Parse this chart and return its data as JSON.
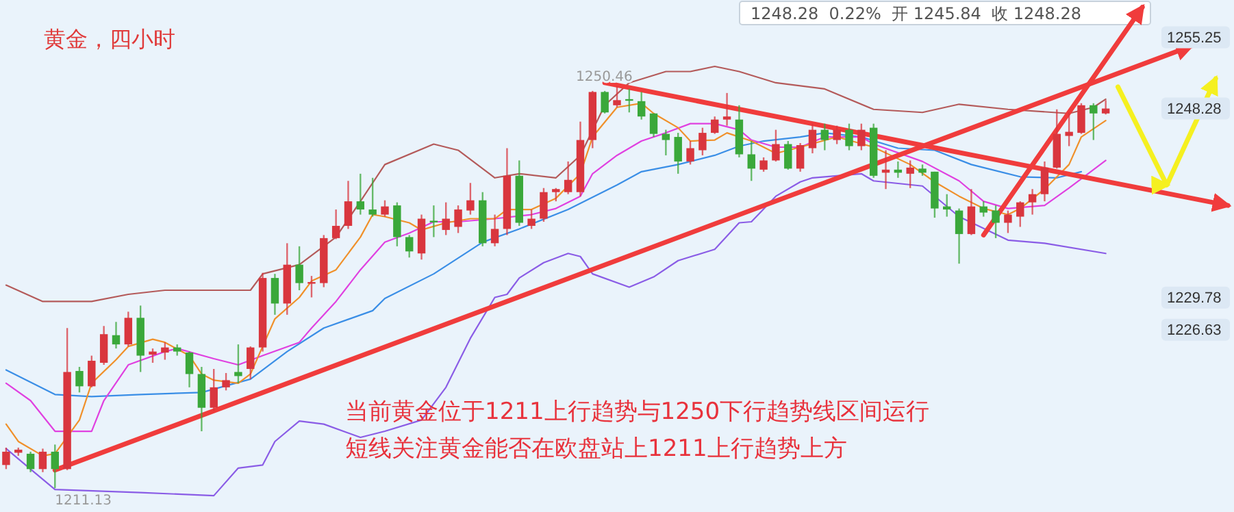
{
  "chart_data": {
    "type": "candlestick",
    "title": "黄金，四小时",
    "categories": [
      null,
      null,
      null,
      null,
      null,
      null,
      null,
      null,
      null,
      null,
      null,
      null,
      null,
      null,
      null,
      null,
      null,
      null,
      null,
      null,
      null,
      null,
      null,
      null,
      null,
      null,
      null,
      null,
      null,
      null,
      null,
      null,
      null,
      null,
      null,
      null,
      null,
      null,
      null,
      null,
      null,
      null,
      null,
      null,
      null,
      null,
      null,
      null,
      null,
      null,
      null,
      null,
      null,
      null,
      null,
      null,
      null,
      null,
      null,
      null,
      null,
      null,
      null,
      null,
      null,
      null,
      null,
      null,
      null,
      null,
      null,
      null,
      null,
      null,
      null,
      null,
      null,
      null,
      null,
      null,
      null,
      null,
      null,
      null,
      null,
      null,
      null,
      null,
      null,
      null,
      null,
      null,
      null,
      null,
      null,
      null,
      null,
      null,
      null,
      null,
      null
    ],
    "ohlc": [
      [
        1213.4,
        1215.1,
        1213.0,
        1214.7
      ],
      [
        1214.6,
        1215.1,
        1214.3,
        1214.9
      ],
      [
        1214.5,
        1214.7,
        1212.7,
        1213.0
      ],
      [
        1213.0,
        1215.0,
        1212.7,
        1214.7
      ],
      [
        1214.7,
        1215.4,
        1211.13,
        1213.0
      ],
      [
        1213.0,
        1226.8,
        1212.9,
        1222.5
      ],
      [
        1222.6,
        1223.0,
        1220.5,
        1221.1
      ],
      [
        1221.1,
        1224.1,
        1221.0,
        1223.6
      ],
      [
        1223.4,
        1227.0,
        1223.2,
        1226.2
      ],
      [
        1226.1,
        1227.4,
        1224.8,
        1225.2
      ],
      [
        1225.2,
        1228.4,
        1225.0,
        1227.8
      ],
      [
        1227.8,
        1229.0,
        1222.5,
        1224.1
      ],
      [
        1224.2,
        1224.8,
        1223.4,
        1224.5
      ],
      [
        1224.4,
        1225.4,
        1223.7,
        1224.9
      ],
      [
        1224.9,
        1225.2,
        1224.1,
        1224.5
      ],
      [
        1224.4,
        1224.5,
        1221.0,
        1222.3
      ],
      [
        1222.3,
        1223.0,
        1216.7,
        1219.0
      ],
      [
        1219.0,
        1222.8,
        1218.7,
        1221.0
      ],
      [
        1221.0,
        1222.4,
        1220.7,
        1221.7
      ],
      [
        1222.5,
        1225.2,
        1221.4,
        1222.1
      ],
      [
        1222.8,
        1225.0,
        1221.8,
        1224.9
      ],
      [
        1224.9,
        1232.2,
        1224.5,
        1231.7
      ],
      [
        1231.7,
        1232.1,
        1228.1,
        1229.2
      ],
      [
        1229.2,
        1235.1,
        1228.1,
        1233.0
      ],
      [
        1233.0,
        1234.8,
        1230.5,
        1231.2
      ],
      [
        1231.2,
        1231.9,
        1229.8,
        1231.3
      ],
      [
        1231.2,
        1235.9,
        1230.8,
        1235.6
      ],
      [
        1235.6,
        1238.4,
        1235.5,
        1236.8
      ],
      [
        1236.8,
        1241.2,
        1236.5,
        1239.2
      ],
      [
        1239.2,
        1241.9,
        1237.9,
        1238.4
      ],
      [
        1238.4,
        1241.5,
        1237.7,
        1237.9
      ],
      [
        1237.9,
        1239.3,
        1237.7,
        1238.7
      ],
      [
        1238.8,
        1239.1,
        1234.8,
        1235.7
      ],
      [
        1235.7,
        1235.9,
        1233.7,
        1234.3
      ],
      [
        1234.1,
        1237.9,
        1233.5,
        1237.5
      ],
      [
        1237.3,
        1238.8,
        1235.7,
        1237.2
      ],
      [
        1236.4,
        1239.1,
        1235.9,
        1237.5
      ],
      [
        1236.7,
        1238.8,
        1236.1,
        1238.4
      ],
      [
        1238.3,
        1241.0,
        1237.9,
        1239.3
      ],
      [
        1239.3,
        1240.1,
        1234.8,
        1235.1
      ],
      [
        1235.1,
        1237.9,
        1234.8,
        1236.5
      ],
      [
        1236.5,
        1244.4,
        1235.9,
        1241.7
      ],
      [
        1241.7,
        1243.2,
        1236.8,
        1237.1
      ],
      [
        1236.8,
        1238.4,
        1236.5,
        1237.5
      ],
      [
        1237.5,
        1240.5,
        1237.2,
        1240.1
      ],
      [
        1240.1,
        1240.5,
        1239.2,
        1240.4
      ],
      [
        1240.1,
        1243.1,
        1239.9,
        1241.3
      ],
      [
        1240.1,
        1247.0,
        1239.7,
        1245.2
      ],
      [
        1245.2,
        1250.0,
        1244.4,
        1249.9
      ],
      [
        1249.9,
        1250.0,
        1247.8,
        1247.9
      ],
      [
        1248.6,
        1250.46,
        1248.4,
        1249.1
      ],
      [
        1249.2,
        1250.2,
        1247.9,
        1249.1
      ],
      [
        1249.0,
        1249.9,
        1247.2,
        1247.5
      ],
      [
        1247.8,
        1247.8,
        1245.5,
        1245.8
      ],
      [
        1245.8,
        1246.2,
        1243.7,
        1245.2
      ],
      [
        1245.5,
        1245.9,
        1241.9,
        1243.1
      ],
      [
        1243.1,
        1245.1,
        1242.8,
        1244.4
      ],
      [
        1244.2,
        1246.4,
        1243.7,
        1245.9
      ],
      [
        1245.9,
        1247.5,
        1245.8,
        1247.2
      ],
      [
        1247.2,
        1249.8,
        1246.6,
        1247.5
      ],
      [
        1247.2,
        1248.6,
        1243.5,
        1243.8
      ],
      [
        1243.8,
        1245.1,
        1241.2,
        1242.4
      ],
      [
        1242.3,
        1243.5,
        1242.1,
        1243.2
      ],
      [
        1243.2,
        1246.2,
        1243.1,
        1244.8
      ],
      [
        1244.8,
        1245.1,
        1242.3,
        1242.4
      ],
      [
        1242.4,
        1244.9,
        1242.1,
        1244.7
      ],
      [
        1244.4,
        1246.8,
        1243.9,
        1246.2
      ],
      [
        1246.2,
        1246.8,
        1244.2,
        1245.2
      ],
      [
        1245.2,
        1246.6,
        1244.8,
        1246.2
      ],
      [
        1246.2,
        1246.8,
        1244.2,
        1244.6
      ],
      [
        1244.6,
        1246.8,
        1244.2,
        1246.2
      ],
      [
        1246.4,
        1246.8,
        1241.5,
        1241.7
      ],
      [
        1242.0,
        1244.2,
        1240.4,
        1242.3
      ],
      [
        1242.3,
        1243.1,
        1241.5,
        1242.0
      ],
      [
        1241.9,
        1243.2,
        1240.5,
        1242.5
      ],
      [
        1242.4,
        1242.8,
        1241.7,
        1242.0
      ],
      [
        1242.1,
        1242.1,
        1237.6,
        1238.5
      ],
      [
        1238.7,
        1239.9,
        1237.7,
        1238.4
      ],
      [
        1238.3,
        1238.5,
        1233.1,
        1236.0
      ],
      [
        1236.0,
        1240.4,
        1235.9,
        1238.7
      ],
      [
        1238.7,
        1239.2,
        1237.7,
        1238.1
      ],
      [
        1238.3,
        1238.8,
        1235.6,
        1237.1
      ],
      [
        1237.1,
        1238.3,
        1236.1,
        1237.9
      ],
      [
        1237.7,
        1239.2,
        1236.7,
        1239.1
      ],
      [
        1239.1,
        1240.4,
        1237.9,
        1239.9
      ],
      [
        1239.9,
        1243.1,
        1239.2,
        1242.5
      ],
      [
        1242.5,
        1248.2,
        1242.4,
        1245.8
      ],
      [
        1245.6,
        1247.9,
        1244.6,
        1246.0
      ],
      [
        1245.9,
        1248.8,
        1245.8,
        1248.6
      ],
      [
        1248.6,
        1248.8,
        1245.2,
        1247.8
      ],
      [
        1247.8,
        1249.1,
        1247.7,
        1248.28
      ],
      null,
      null,
      null,
      null,
      null,
      null,
      null,
      null,
      null,
      null
    ],
    "series": [
      {
        "type": "line",
        "color": "#b45a5a",
        "values": [
          1231.0,
          null,
          null,
          1229.4,
          null,
          null,
          null,
          1229.4,
          null,
          null,
          1230.1,
          null,
          null,
          1230.5,
          null,
          null,
          null,
          null,
          null,
          null,
          1230.5,
          1232.1,
          null,
          null,
          1233.0,
          null,
          null,
          1235.7,
          null,
          1239.2,
          null,
          1242.8,
          null,
          null,
          null,
          1244.8,
          null,
          1244.2,
          null,
          null,
          1241.5,
          null,
          1241.9,
          null,
          null,
          1241.5,
          null,
          1243.7,
          null,
          1248.6,
          null,
          1250.8,
          null,
          null,
          1251.9,
          null,
          1251.9,
          null,
          1252.4,
          null,
          1251.9,
          null,
          null,
          1250.8,
          null,
          null,
          null,
          1250.2,
          null,
          null,
          null,
          1248.2,
          null,
          null,
          null,
          1247.9,
          null,
          null,
          1248.7,
          null,
          null,
          null,
          1248.2,
          null,
          null,
          null,
          null,
          1247.8,
          null,
          1248.4,
          1249.2,
          null,
          null,
          null,
          null,
          null,
          null,
          null,
          null,
          null,
          null
        ]
      },
      {
        "type": "line",
        "color": "#8a5ce6",
        "values": [
          1215.0,
          null,
          1213.0,
          null,
          1211.0,
          null,
          null,
          null,
          null,
          null,
          null,
          1210.7,
          null,
          null,
          null,
          null,
          null,
          1210.4,
          null,
          1213.1,
          null,
          1213.4,
          1215.7,
          null,
          1217.7,
          null,
          1217.4,
          null,
          null,
          1216.1,
          null,
          1216.7,
          null,
          null,
          1217.8,
          null,
          1221.0,
          null,
          1225.8,
          null,
          1229.8,
          1230.1,
          1231.7,
          null,
          1233.2,
          null,
          1234.1,
          1233.8,
          1232.1,
          null,
          null,
          1230.8,
          null,
          1231.8,
          null,
          1233.4,
          null,
          null,
          1234.5,
          null,
          1237.1,
          1237.2,
          null,
          1239.7,
          null,
          1241.1,
          1241.5,
          null,
          null,
          null,
          1241.9,
          1241.2,
          null,
          null,
          null,
          1240.7,
          null,
          null,
          1237.7,
          null,
          null,
          null,
          1235.4,
          null,
          null,
          1235.1,
          null,
          null,
          null,
          null,
          1234.1,
          null,
          null,
          null,
          null,
          null,
          null,
          null,
          null,
          null,
          null
        ]
      },
      {
        "type": "line",
        "color": "#3a8ee6",
        "values": [
          1222.7,
          null,
          null,
          null,
          1220.3,
          null,
          null,
          1220.1,
          null,
          null,
          null,
          1220.3,
          null,
          null,
          null,
          null,
          1220.5,
          null,
          null,
          null,
          1221.8,
          null,
          null,
          1224.5,
          null,
          null,
          1226.8,
          null,
          null,
          null,
          1228.5,
          1229.7,
          null,
          null,
          null,
          1232.1,
          null,
          null,
          null,
          1235.2,
          null,
          null,
          1236.5,
          null,
          null,
          null,
          1238.4,
          null,
          null,
          null,
          1240.8,
          null,
          1242.1,
          null,
          null,
          1242.8,
          null,
          null,
          1243.7,
          null,
          1244.6,
          null,
          1245.1,
          null,
          null,
          1245.5,
          null,
          1245.9,
          null,
          null,
          1245.5,
          null,
          null,
          1244.4,
          null,
          null,
          1244.2,
          null,
          null,
          1242.8,
          null,
          null,
          null,
          1241.6,
          null,
          null,
          1241.5,
          null,
          1242.1,
          null,
          null,
          null,
          null,
          null,
          null,
          null,
          null,
          null,
          null,
          null,
          null
        ]
      },
      {
        "type": "line",
        "color": "#e040e0",
        "values": [
          1221.4,
          null,
          1219.7,
          null,
          1216.7,
          null,
          null,
          1216.7,
          1219.7,
          null,
          1223.2,
          null,
          null,
          1224.5,
          1224.8,
          null,
          null,
          1223.8,
          null,
          1223.2,
          null,
          1224.1,
          null,
          null,
          1225.4,
          1226.8,
          null,
          1229.4,
          null,
          1232.5,
          null,
          1235.2,
          null,
          1236.1,
          null,
          1237.2,
          null,
          1237.2,
          null,
          null,
          1237.5,
          null,
          null,
          1237.9,
          null,
          1238.5,
          null,
          1239.7,
          1241.9,
          null,
          1243.7,
          null,
          1245.1,
          null,
          1245.9,
          null,
          1246.8,
          null,
          1246.8,
          null,
          1246.2,
          1245.2,
          null,
          1244.5,
          null,
          1244.5,
          null,
          1245.5,
          null,
          null,
          1245.5,
          1244.8,
          null,
          null,
          null,
          1243.1,
          null,
          null,
          1241.2,
          null,
          1239.2,
          null,
          1238.5,
          null,
          null,
          1238.8,
          null,
          1240.5,
          null,
          null,
          1243.2,
          null,
          null,
          null,
          null,
          null,
          null,
          null,
          null,
          null,
          null
        ]
      },
      {
        "type": "line",
        "color": "#f0902a",
        "values": [
          1217.4,
          1215.7,
          null,
          1214.3,
          1214.5,
          null,
          1217.8,
          1221.4,
          null,
          1223.7,
          1225.0,
          null,
          1225.7,
          1225.4,
          null,
          1224.1,
          1222.3,
          1221.7,
          null,
          1221.4,
          1222.3,
          1225.0,
          1227.7,
          null,
          1229.8,
          1231.4,
          null,
          1232.5,
          null,
          1235.7,
          1237.9,
          1237.7,
          null,
          1237.1,
          1236.4,
          null,
          1237.1,
          null,
          1237.5,
          null,
          1237.5,
          1238.4,
          null,
          1238.4,
          null,
          1239.5,
          null,
          1241.9,
          1245.5,
          null,
          1248.4,
          null,
          1248.8,
          1247.8,
          null,
          1246.4,
          1245.1,
          null,
          1245.2,
          1245.9,
          null,
          1245.1,
          null,
          1243.9,
          null,
          1244.5,
          null,
          null,
          1245.5,
          null,
          null,
          1244.5,
          null,
          null,
          1242.8,
          null,
          1241.1,
          null,
          1239.7,
          null,
          1238.5,
          null,
          1237.9,
          1238.5,
          null,
          1240.4,
          null,
          1242.8,
          1245.5,
          null,
          1247.1,
          null,
          null,
          null,
          null,
          null,
          null,
          null,
          null,
          null,
          null
        ]
      },
      {
        "type": "line",
        "color": "#f03c3c",
        "values": [
          null,
          null,
          null,
          null,
          1212.9,
          null,
          null,
          null,
          null,
          null,
          null,
          null,
          null,
          null,
          null,
          null,
          null,
          null,
          null,
          null,
          null,
          null,
          null,
          null,
          null,
          null,
          null,
          null,
          null,
          null,
          null,
          null,
          null,
          null,
          null,
          null,
          null,
          null,
          null,
          null,
          null,
          null,
          null,
          null,
          null,
          null,
          null,
          null,
          null,
          null,
          null,
          null,
          null,
          null,
          null,
          null,
          null,
          null,
          null,
          null,
          null,
          null,
          null,
          null,
          null,
          null,
          null,
          null,
          null,
          null,
          null,
          null,
          null,
          null,
          null,
          null,
          null,
          null,
          null,
          null,
          null,
          null,
          null,
          null,
          null,
          null,
          null,
          null,
          null,
          null,
          null,
          null,
          null,
          null,
          null,
          null,
          null,
          1254.4,
          null,
          null,
          null
        ]
      },
      {
        "type": "line",
        "color": "#f03c3c",
        "values": [
          null,
          null,
          null,
          null,
          null,
          null,
          null,
          null,
          null,
          null,
          null,
          null,
          null,
          null,
          null,
          null,
          null,
          null,
          null,
          null,
          null,
          null,
          null,
          null,
          null,
          null,
          null,
          null,
          null,
          null,
          null,
          null,
          null,
          null,
          null,
          null,
          null,
          null,
          null,
          null,
          null,
          null,
          null,
          null,
          null,
          null,
          null,
          null,
          null,
          1250.8,
          null,
          null,
          null,
          null,
          null,
          null,
          null,
          null,
          null,
          null,
          null,
          null,
          null,
          null,
          null,
          null,
          null,
          null,
          null,
          null,
          null,
          null,
          null,
          null,
          null,
          null,
          null,
          null,
          null,
          null,
          null,
          null,
          null,
          null,
          null,
          null,
          null,
          null,
          null,
          null,
          null,
          null,
          null,
          null,
          null,
          null,
          null,
          null,
          null,
          null,
          1238.8
        ]
      },
      {
        "type": "line",
        "color": "#f03c3c",
        "values": [
          null,
          null,
          null,
          null,
          null,
          null,
          null,
          null,
          null,
          null,
          null,
          null,
          null,
          null,
          null,
          null,
          null,
          null,
          null,
          null,
          null,
          null,
          null,
          null,
          null,
          null,
          null,
          null,
          null,
          null,
          null,
          null,
          null,
          null,
          null,
          null,
          null,
          null,
          null,
          null,
          null,
          null,
          null,
          null,
          null,
          null,
          null,
          null,
          null,
          null,
          null,
          null,
          null,
          null,
          null,
          null,
          null,
          null,
          null,
          null,
          null,
          null,
          null,
          null,
          null,
          null,
          null,
          null,
          null,
          null,
          null,
          null,
          null,
          null,
          null,
          null,
          null,
          null,
          null,
          null,
          1235.9,
          null,
          null,
          null,
          null,
          null,
          null,
          null,
          null,
          null,
          null,
          null,
          null,
          1258.2,
          null,
          null,
          null,
          null,
          null,
          null,
          null
        ]
      },
      {
        "type": "line",
        "color": "#f5f020",
        "values": [
          null,
          null,
          null,
          null,
          null,
          null,
          null,
          null,
          null,
          null,
          null,
          null,
          null,
          null,
          null,
          null,
          null,
          null,
          null,
          null,
          null,
          null,
          null,
          null,
          null,
          null,
          null,
          null,
          null,
          null,
          null,
          null,
          null,
          null,
          null,
          null,
          null,
          null,
          null,
          null,
          null,
          null,
          null,
          null,
          null,
          null,
          null,
          null,
          null,
          null,
          null,
          null,
          null,
          null,
          null,
          null,
          null,
          null,
          null,
          null,
          null,
          null,
          null,
          null,
          null,
          null,
          null,
          null,
          null,
          null,
          null,
          null,
          null,
          null,
          null,
          null,
          null,
          null,
          null,
          null,
          null,
          null,
          null,
          null,
          null,
          null,
          null,
          null,
          null,
          null,
          null,
          1250.4,
          null,
          null,
          null,
          1240.8,
          null,
          null,
          null,
          1251.2,
          null
        ]
      }
    ],
    "ylim": [
      1208.8,
      1258.9
    ],
    "yticks": [
      1255.25,
      1248.28,
      1229.78,
      1226.63
    ],
    "annotations": [
      "1248.28  0.22%  开 1245.84  收 1248.28",
      "当前黄金位于1211上行趋势与1250下行趋势线区间运行",
      "短线关注黄金能否在欧盘站上1211上行趋势上方",
      {
        "text": "1250.46",
        "y": 1250.46
      },
      {
        "text": "1211.13",
        "y": 1211.13
      }
    ]
  }
}
